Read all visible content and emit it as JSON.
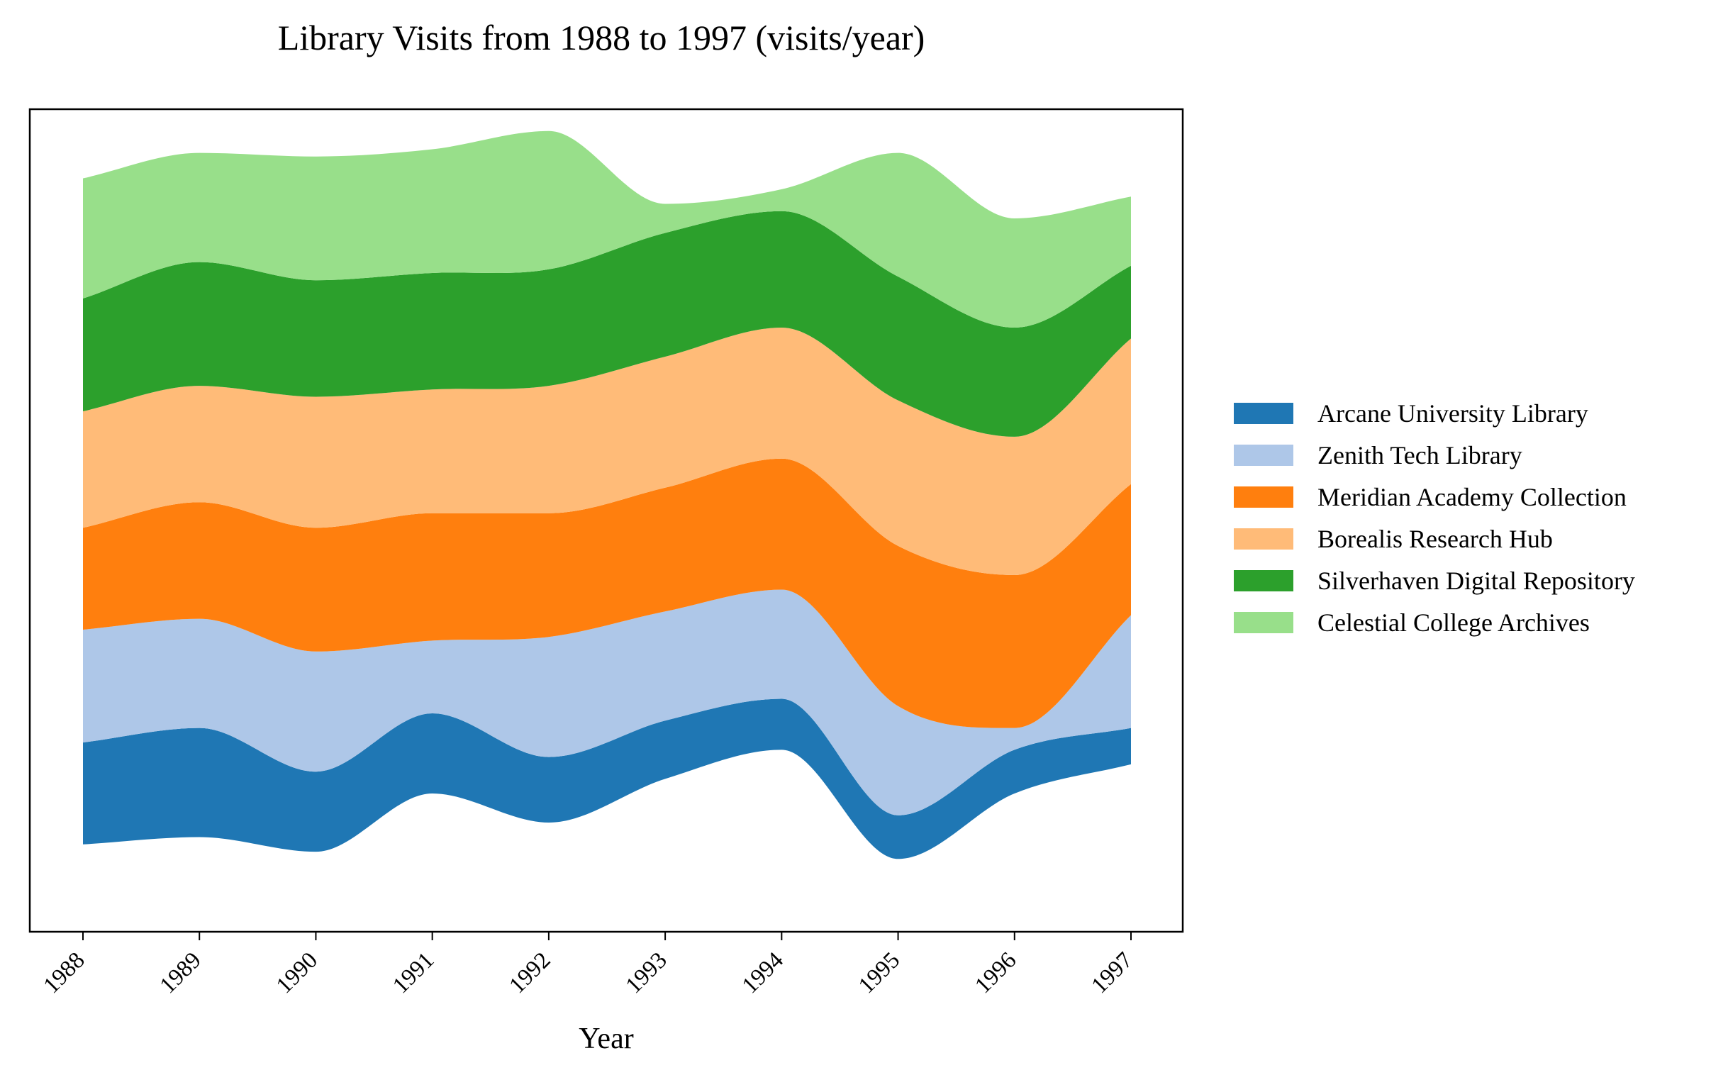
{
  "chart_data": {
    "type": "area",
    "subtype": "streamgraph",
    "title": "Library Visits from 1988 to 1997 (visits/year)",
    "xlabel": "Year",
    "ylabel": "",
    "x": [
      "1988",
      "1989",
      "1990",
      "1991",
      "1992",
      "1993",
      "1994",
      "1995",
      "1996",
      "1997"
    ],
    "baseline": [
      -2700,
      -2600,
      -2800,
      -2000,
      -2400,
      -1800,
      -1400,
      -2900,
      -2000,
      -1600
    ],
    "series": [
      {
        "name": "Arcane University Library",
        "color": "#1f77b4",
        "values": [
          1400,
          1500,
          1100,
          1100,
          900,
          800,
          700,
          600,
          600,
          500
        ]
      },
      {
        "name": "Zenith Tech Library",
        "color": "#aec7e8",
        "values": [
          1550,
          1500,
          1650,
          1000,
          1650,
          1500,
          1500,
          1500,
          300,
          1550
        ]
      },
      {
        "name": "Meridian Academy Collection",
        "color": "#ff7f0e",
        "values": [
          1400,
          1600,
          1700,
          1750,
          1700,
          1700,
          1800,
          2200,
          2100,
          1800
        ]
      },
      {
        "name": "Borealis Research Hub",
        "color": "#ffbb78",
        "values": [
          1600,
          1600,
          1800,
          1700,
          1750,
          1800,
          1800,
          2000,
          1900,
          2000
        ]
      },
      {
        "name": "Silverhaven Digital Repository",
        "color": "#2ca02c",
        "values": [
          1550,
          1700,
          1600,
          1600,
          1600,
          1700,
          1600,
          1700,
          1500,
          1000
        ]
      },
      {
        "name": "Celestial College Archives",
        "color": "#98df8a",
        "values": [
          1650,
          1500,
          1700,
          1700,
          1900,
          400,
          300,
          1700,
          1500,
          950
        ]
      }
    ],
    "ylim": [
      -3900,
      7400
    ],
    "legend": "right",
    "grid": false
  }
}
